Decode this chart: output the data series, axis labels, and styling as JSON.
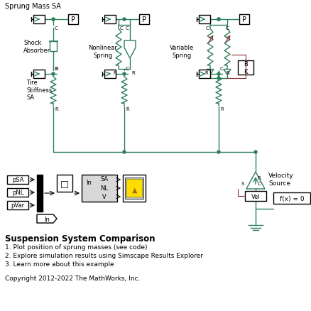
{
  "title": "Sprung Mass SA",
  "bg_color": "#ffffff",
  "diagram_color": "#2d7d5a",
  "block_edge": "#000000",
  "bottom_title": "Suspension System Comparison",
  "items": [
    "1. Plot position of sprung masses (see code)",
    "2. Explore simulation results using Simscape Results Explorer",
    "3. Learn more about this example"
  ],
  "copyright": "Copyright 2012-2022 The MathWorks, Inc.",
  "fig_width": 4.38,
  "fig_height": 4.39,
  "dpi": 100
}
